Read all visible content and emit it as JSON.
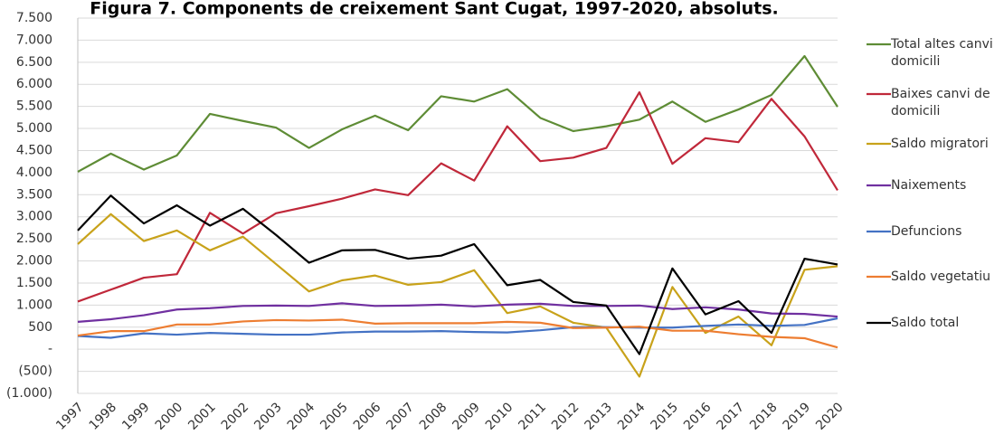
{
  "chart_data": {
    "type": "line",
    "title": "Figura 7. Components de creixement Sant Cugat, 1997-2020, absoluts.",
    "categories": [
      "1997",
      "1998",
      "1999",
      "2000",
      "2001",
      "2002",
      "2003",
      "2004",
      "2005",
      "2006",
      "2007",
      "2008",
      "2009",
      "2010",
      "2011",
      "2012",
      "2013",
      "2014",
      "2015",
      "2016",
      "2017",
      "2018",
      "2019",
      "2020"
    ],
    "series": [
      {
        "name": "Total altes canvi domicili",
        "color": "#5e8c35",
        "values": [
          4020,
          4430,
          4070,
          4390,
          5330,
          5170,
          5020,
          4560,
          4980,
          5290,
          4960,
          5730,
          5610,
          5890,
          5240,
          4940,
          5050,
          5200,
          5610,
          5150,
          5430,
          5760,
          6640,
          5490
        ]
      },
      {
        "name": "Baixes canvi de domicili",
        "color": "#c0283a",
        "values": [
          1080,
          1350,
          1620,
          1700,
          3090,
          2620,
          3080,
          3240,
          3410,
          3620,
          3490,
          4210,
          3820,
          5050,
          4260,
          4340,
          4560,
          5820,
          4200,
          4780,
          4690,
          5670,
          4820,
          3600
        ]
      },
      {
        "name": "Saldo migratori",
        "color": "#c8a21a",
        "values": [
          2380,
          3060,
          2450,
          2690,
          2240,
          2550,
          1930,
          1310,
          1560,
          1670,
          1460,
          1520,
          1790,
          820,
          970,
          600,
          490,
          -620,
          1410,
          370,
          740,
          90,
          1800,
          1880
        ]
      },
      {
        "name": "Naixements",
        "color": "#7030a0",
        "values": [
          620,
          680,
          770,
          900,
          930,
          980,
          990,
          980,
          1040,
          980,
          990,
          1010,
          970,
          1010,
          1030,
          980,
          980,
          990,
          910,
          950,
          900,
          810,
          800,
          740
        ]
      },
      {
        "name": "Defuncions",
        "color": "#4472c4",
        "values": [
          300,
          260,
          360,
          330,
          370,
          350,
          330,
          330,
          380,
          400,
          400,
          410,
          390,
          380,
          430,
          500,
          500,
          490,
          490,
          530,
          560,
          530,
          550,
          700
        ]
      },
      {
        "name": "Saldo vegetatiu",
        "color": "#ed7d31",
        "values": [
          310,
          410,
          410,
          560,
          560,
          630,
          660,
          650,
          670,
          580,
          590,
          590,
          590,
          620,
          600,
          480,
          490,
          510,
          420,
          420,
          340,
          280,
          250,
          40
        ]
      },
      {
        "name": "Saldo total",
        "color": "#000000",
        "values": [
          2690,
          3480,
          2850,
          3260,
          2800,
          3180,
          2590,
          1960,
          2240,
          2250,
          2050,
          2120,
          2380,
          1450,
          1570,
          1070,
          990,
          -110,
          1830,
          790,
          1090,
          370,
          2050,
          1920
        ]
      }
    ],
    "ylim": [
      -1000,
      7500
    ],
    "yticks": [
      {
        "value": 7500,
        "label": "7.500"
      },
      {
        "value": 7000,
        "label": "7.000"
      },
      {
        "value": 6500,
        "label": "6.500"
      },
      {
        "value": 6000,
        "label": "6.000"
      },
      {
        "value": 5500,
        "label": "5.500"
      },
      {
        "value": 5000,
        "label": "5.000"
      },
      {
        "value": 4500,
        "label": "4.500"
      },
      {
        "value": 4000,
        "label": "4.000"
      },
      {
        "value": 3500,
        "label": "3.500"
      },
      {
        "value": 3000,
        "label": "3.000"
      },
      {
        "value": 2500,
        "label": "2.500"
      },
      {
        "value": 2000,
        "label": "2.000"
      },
      {
        "value": 1500,
        "label": "1.500"
      },
      {
        "value": 1000,
        "label": "1.000"
      },
      500,
      {
        "value": 0,
        "label": "-"
      },
      {
        "value": -500,
        "label": "(500)"
      },
      {
        "value": -1000,
        "label": "(1.000)"
      }
    ],
    "grid": true,
    "legend": "right"
  }
}
